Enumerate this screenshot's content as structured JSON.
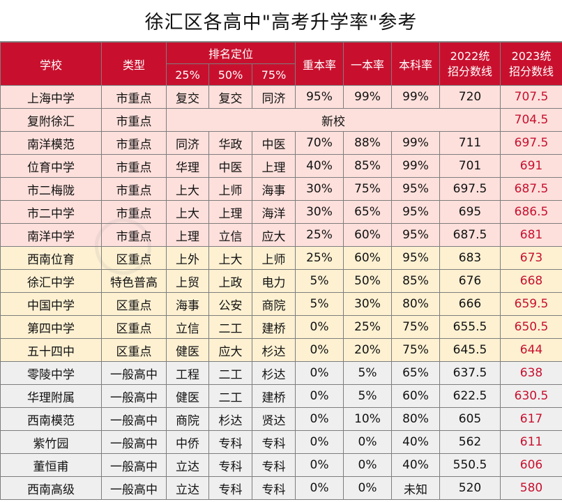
{
  "title": "徐汇区各高中\"高考升学率\"参考",
  "colors": {
    "header_red": "#c8102e",
    "city_key_row": "#fde0dc",
    "district_key_row": "#fdf1d2",
    "general_row": "#efefef",
    "score_2023_text": "#c8102e"
  },
  "header": {
    "school": "学校",
    "type": "类型",
    "ranking": "排名定位",
    "p25": "25%",
    "p50": "50%",
    "p75": "75%",
    "key_rate": "重本率",
    "first_rate": "一本率",
    "bachelor_rate": "本科率",
    "score2022": "2022统招分数线",
    "score2023": "2023统招分数线"
  },
  "rows": [
    {
      "school": "上海中学",
      "type": "市重点",
      "p25": "复交",
      "p50": "复交",
      "p75": "同济",
      "key_rate": "95%",
      "first_rate": "99%",
      "bachelor_rate": "99%",
      "score2022": "720",
      "score2023": "707.5",
      "tier": "city"
    },
    {
      "school": "复附徐汇",
      "type": "市重点",
      "merged_note": "新校",
      "score2023": "704.5",
      "tier": "city"
    },
    {
      "school": "南洋模范",
      "type": "市重点",
      "p25": "同济",
      "p50": "华政",
      "p75": "中医",
      "key_rate": "70%",
      "first_rate": "88%",
      "bachelor_rate": "99%",
      "score2022": "711",
      "score2023": "697.5",
      "tier": "city"
    },
    {
      "school": "位育中学",
      "type": "市重点",
      "p25": "华理",
      "p50": "中医",
      "p75": "上理",
      "key_rate": "40%",
      "first_rate": "85%",
      "bachelor_rate": "99%",
      "score2022": "701",
      "score2023": "691",
      "tier": "city"
    },
    {
      "school": "市二梅陇",
      "type": "市重点",
      "p25": "上大",
      "p50": "上师",
      "p75": "海事",
      "key_rate": "30%",
      "first_rate": "75%",
      "bachelor_rate": "95%",
      "score2022": "697.5",
      "score2023": "687.5",
      "tier": "city"
    },
    {
      "school": "市二中学",
      "type": "市重点",
      "p25": "上大",
      "p50": "上理",
      "p75": "海洋",
      "key_rate": "30%",
      "first_rate": "65%",
      "bachelor_rate": "95%",
      "score2022": "695",
      "score2023": "686.5",
      "tier": "city"
    },
    {
      "school": "南洋中学",
      "type": "市重点",
      "p25": "上理",
      "p50": "立信",
      "p75": "应大",
      "key_rate": "25%",
      "first_rate": "60%",
      "bachelor_rate": "95%",
      "score2022": "687.5",
      "score2023": "681",
      "tier": "city"
    },
    {
      "school": "西南位育",
      "type": "区重点",
      "p25": "上外",
      "p50": "上大",
      "p75": "上师",
      "key_rate": "25%",
      "first_rate": "60%",
      "bachelor_rate": "95%",
      "score2022": "683",
      "score2023": "673",
      "tier": "district"
    },
    {
      "school": "徐汇中学",
      "type": "特色普高",
      "p25": "上贸",
      "p50": "上政",
      "p75": "电力",
      "key_rate": "5%",
      "first_rate": "50%",
      "bachelor_rate": "85%",
      "score2022": "676",
      "score2023": "668",
      "tier": "district"
    },
    {
      "school": "中国中学",
      "type": "区重点",
      "p25": "海事",
      "p50": "公安",
      "p75": "商院",
      "key_rate": "5%",
      "first_rate": "30%",
      "bachelor_rate": "80%",
      "score2022": "666",
      "score2023": "659.5",
      "tier": "district"
    },
    {
      "school": "第四中学",
      "type": "区重点",
      "p25": "立信",
      "p50": "二工",
      "p75": "建桥",
      "key_rate": "0%",
      "first_rate": "25%",
      "bachelor_rate": "75%",
      "score2022": "655.5",
      "score2023": "650.5",
      "tier": "district"
    },
    {
      "school": "五十四中",
      "type": "区重点",
      "p25": "健医",
      "p50": "应大",
      "p75": "杉达",
      "key_rate": "0%",
      "first_rate": "20%",
      "bachelor_rate": "75%",
      "score2022": "645.5",
      "score2023": "644",
      "tier": "district"
    },
    {
      "school": "零陵中学",
      "type": "一般高中",
      "p25": "工程",
      "p50": "二工",
      "p75": "杉达",
      "key_rate": "0%",
      "first_rate": "5%",
      "bachelor_rate": "65%",
      "score2022": "637.5",
      "score2023": "638",
      "tier": "general"
    },
    {
      "school": "华理附属",
      "type": "一般高中",
      "p25": "健医",
      "p50": "二工",
      "p75": "建桥",
      "key_rate": "0%",
      "first_rate": "5%",
      "bachelor_rate": "60%",
      "score2022": "622.5",
      "score2023": "630.5",
      "tier": "general"
    },
    {
      "school": "西南模范",
      "type": "一般高中",
      "p25": "商院",
      "p50": "杉达",
      "p75": "贤达",
      "key_rate": "0%",
      "first_rate": "10%",
      "bachelor_rate": "80%",
      "score2022": "605",
      "score2023": "617",
      "tier": "general"
    },
    {
      "school": "紫竹园",
      "type": "一般高中",
      "p25": "中侨",
      "p50": "专科",
      "p75": "专科",
      "key_rate": "0%",
      "first_rate": "0%",
      "bachelor_rate": "40%",
      "score2022": "562",
      "score2023": "611",
      "tier": "general"
    },
    {
      "school": "董恒甫",
      "type": "一般高中",
      "p25": "立达",
      "p50": "专科",
      "p75": "专科",
      "key_rate": "0%",
      "first_rate": "0%",
      "bachelor_rate": "40%",
      "score2022": "550.5",
      "score2023": "606",
      "tier": "general"
    },
    {
      "school": "西南高级",
      "type": "一般高中",
      "p25": "立达",
      "p50": "专科",
      "p75": "专科",
      "key_rate": "0%",
      "first_rate": "0%",
      "bachelor_rate": "未知",
      "score2022": "520",
      "score2023": "580",
      "tier": "general"
    }
  ]
}
